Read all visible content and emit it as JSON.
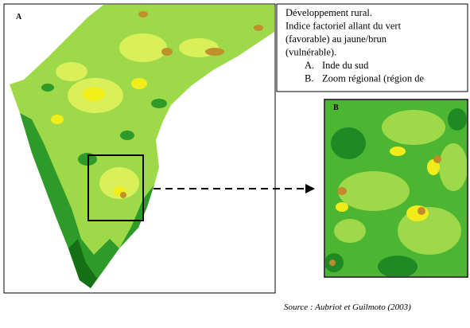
{
  "panel_a": {
    "label": "A"
  },
  "panel_b": {
    "label": "B"
  },
  "legend": {
    "lines": [
      "Développement rural.",
      "Indice factoriel allant du vert",
      "(favorable) au jaune/brun",
      "(vulnérable)."
    ],
    "items": [
      {
        "marker": "A.",
        "text": "Inde du sud"
      },
      {
        "marker": "B.",
        "text": "Zoom régional (région de"
      }
    ]
  },
  "source": "Source : Aubriot et Guilmoto (2003)"
}
